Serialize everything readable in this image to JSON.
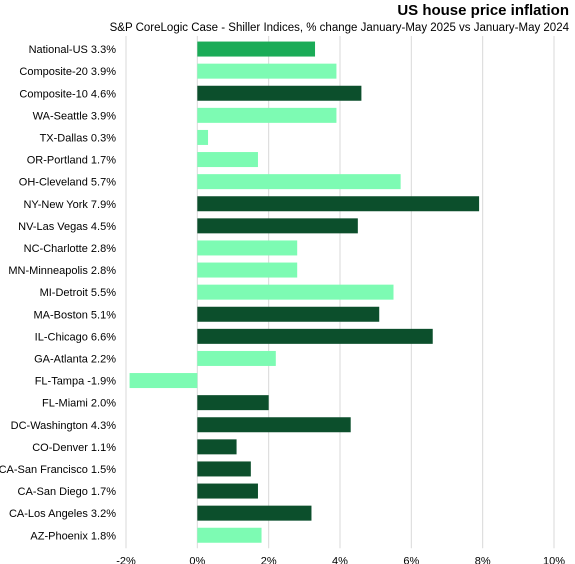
{
  "chart_data": {
    "type": "bar",
    "orientation": "horizontal",
    "title": "US house price inflation",
    "subtitle": "S&P CoreLogic Case - Shiller Indices, % change January-May 2025 vs January-May 2024",
    "categories": [
      "National-US 3.3%",
      "Composite-20 3.9%",
      "Composite-10 4.6%",
      "WA-Seattle 3.9%",
      "TX-Dallas 0.3%",
      "OR-Portland 1.7%",
      "OH-Cleveland 5.7%",
      "NY-New York 7.9%",
      "NV-Las Vegas 4.5%",
      "NC-Charlotte 2.8%",
      "MN-Minneapolis 2.8%",
      "MI-Detroit 5.5%",
      "MA-Boston 5.1%",
      "IL-Chicago 6.6%",
      "GA-Atlanta 2.2%",
      "FL-Tampa -1.9%",
      "FL-Miami 2.0%",
      "DC-Washington 4.3%",
      "CO-Denver 1.1%",
      "CA-San Francisco 1.5%",
      "CA-San Diego 1.7%",
      "CA-Los Angeles 3.2%",
      "AZ-Phoenix 1.8%"
    ],
    "values": [
      3.3,
      3.9,
      4.6,
      3.9,
      0.3,
      1.7,
      5.7,
      7.9,
      4.5,
      2.8,
      2.8,
      5.5,
      5.1,
      6.6,
      2.2,
      -1.9,
      2.0,
      4.3,
      1.1,
      1.5,
      1.7,
      3.2,
      1.8
    ],
    "bar_colors": [
      "#1aab57",
      "#7dfbb3",
      "#0c4f2c",
      "#7dfbb3",
      "#7dfbb3",
      "#7dfbb3",
      "#7dfbb3",
      "#0c4f2c",
      "#0c4f2c",
      "#7dfbb3",
      "#7dfbb3",
      "#7dfbb3",
      "#0c4f2c",
      "#0c4f2c",
      "#7dfbb3",
      "#7dfbb3",
      "#0c4f2c",
      "#0c4f2c",
      "#0c4f2c",
      "#0c4f2c",
      "#0c4f2c",
      "#0c4f2c",
      "#7dfbb3"
    ],
    "xlim": [
      -2,
      10
    ],
    "x_ticks": [
      -2,
      0,
      2,
      4,
      6,
      8,
      10
    ],
    "x_tick_labels": [
      "-2%",
      "0%",
      "2%",
      "4%",
      "6%",
      "8%",
      "10%"
    ],
    "grid": "vertical",
    "grid_color": "#d9d9d9",
    "legend": "none"
  }
}
